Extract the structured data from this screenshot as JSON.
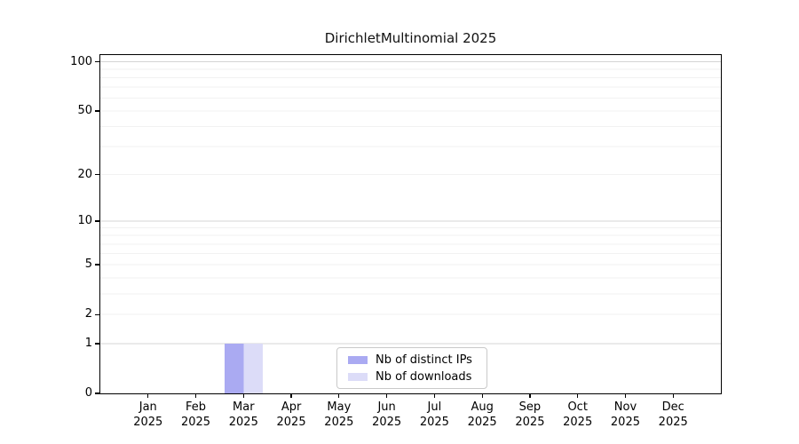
{
  "chart_data": {
    "type": "bar",
    "title": "DirichletMultinomial 2025",
    "categories": [
      "Jan 2025",
      "Feb 2025",
      "Mar 2025",
      "Apr 2025",
      "May 2025",
      "Jun 2025",
      "Jul 2025",
      "Aug 2025",
      "Sep 2025",
      "Oct 2025",
      "Nov 2025",
      "Dec 2025"
    ],
    "series": [
      {
        "name": "Nb of distinct IPs",
        "color": "#aaaaf2",
        "values": [
          0,
          0,
          1,
          0,
          0,
          0,
          0,
          0,
          0,
          0,
          0,
          0
        ]
      },
      {
        "name": "Nb of downloads",
        "color": "#dcdcf8",
        "values": [
          0,
          0,
          1,
          0,
          0,
          0,
          0,
          0,
          0,
          0,
          0,
          0
        ]
      }
    ],
    "xlabel": "",
    "ylabel": "",
    "yticks": [
      0,
      1,
      2,
      5,
      10,
      20,
      50,
      100
    ],
    "yscale": "log1p",
    "ylim": [
      0,
      110
    ],
    "grid": {
      "show": true,
      "major_color": "#d4d4d4",
      "minor_color": "#f2f2f2"
    },
    "legend": {
      "position": "lower center"
    }
  }
}
